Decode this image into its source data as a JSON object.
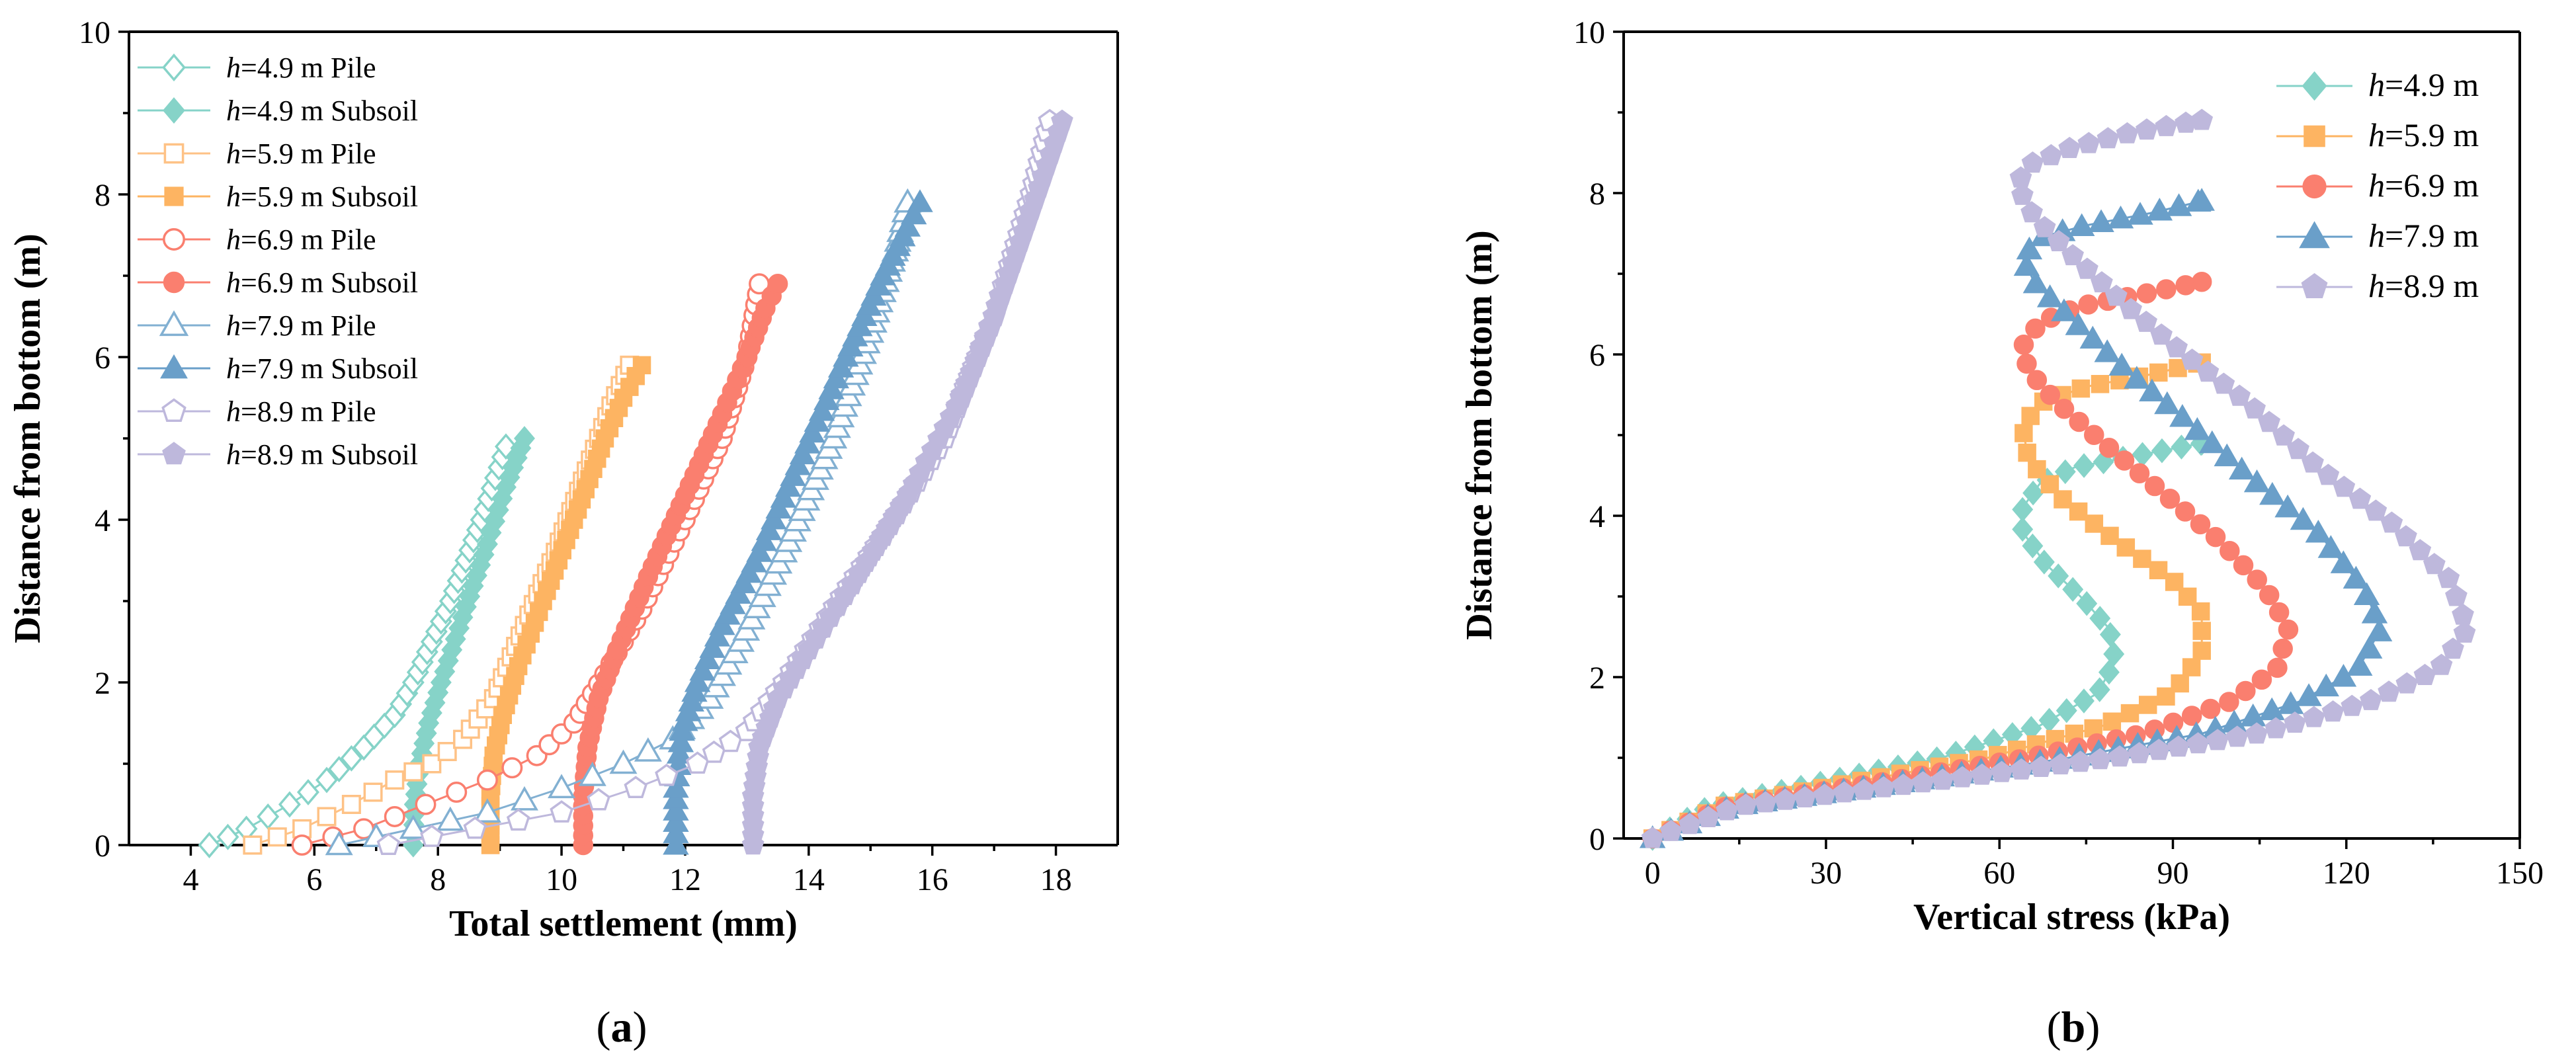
{
  "chart_data": [
    {
      "panel": "a",
      "type": "scatter",
      "panel_label": "(a)",
      "panel_label_letter": "a",
      "panel_label_open": "(",
      "panel_label_close": ")",
      "xlabel": "Total settlement (mm)",
      "ylabel": "Distance from bottom (m)",
      "xlim": [
        3,
        19
      ],
      "ylim": [
        0,
        10
      ],
      "xticks": [
        4,
        6,
        8,
        10,
        12,
        14,
        16,
        18
      ],
      "xtick_labels": [
        "4",
        "6",
        "8",
        "10",
        "12",
        "14",
        "16",
        "18"
      ],
      "yticks": [
        0,
        2,
        4,
        6,
        8,
        10
      ],
      "ytick_labels": [
        "0",
        "2",
        "4",
        "6",
        "8",
        "10"
      ],
      "legend_position": "top-left",
      "series": [
        {
          "name": "h=4.9 m Pile",
          "h_text": "h",
          "rest_text": "=4.9 m Pile",
          "color": "#86d3c8",
          "marker": "diamond",
          "filled": false,
          "height": 4.9,
          "points": [
            [
              4.3,
              0
            ],
            [
              4.9,
              0.2
            ],
            [
              5.6,
              0.5
            ],
            [
              6.2,
              0.8
            ],
            [
              6.8,
              1.2
            ],
            [
              7.3,
              1.6
            ],
            [
              7.6,
              2.0
            ],
            [
              8.2,
              3.0
            ],
            [
              8.7,
              4.0
            ],
            [
              9.1,
              4.9
            ]
          ]
        },
        {
          "name": "h=4.9 m Subsoil",
          "h_text": "h",
          "rest_text": "=4.9 m Subsoil",
          "color": "#86d3c8",
          "marker": "diamond",
          "filled": true,
          "height": 4.9,
          "points": [
            [
              7.6,
              0
            ],
            [
              7.62,
              0.5
            ],
            [
              7.7,
              1.0
            ],
            [
              7.85,
              1.5
            ],
            [
              8.05,
              2.0
            ],
            [
              8.4,
              2.8
            ],
            [
              8.8,
              3.7
            ],
            [
              9.1,
              4.4
            ],
            [
              9.4,
              5.0
            ]
          ]
        },
        {
          "name": "h=5.9 m Pile",
          "h_text": "h",
          "rest_text": "=5.9 m Pile",
          "color": "#fec286",
          "marker": "square",
          "filled": false,
          "height": 5.9,
          "points": [
            [
              5.0,
              0
            ],
            [
              5.8,
              0.2
            ],
            [
              6.6,
              0.5
            ],
            [
              7.3,
              0.8
            ],
            [
              7.9,
              1.0
            ],
            [
              8.4,
              1.3
            ],
            [
              8.9,
              1.8
            ],
            [
              9.4,
              2.7
            ],
            [
              9.9,
              3.6
            ],
            [
              10.4,
              4.6
            ],
            [
              10.8,
              5.4
            ],
            [
              11.1,
              5.9
            ]
          ]
        },
        {
          "name": "h=5.9 m Subsoil",
          "h_text": "h",
          "rest_text": "=5.9 m Subsoil",
          "color": "#fdb462",
          "marker": "square",
          "filled": true,
          "height": 5.9,
          "points": [
            [
              8.85,
              0
            ],
            [
              8.85,
              0.6
            ],
            [
              8.9,
              1.1
            ],
            [
              9.05,
              1.6
            ],
            [
              9.3,
              2.2
            ],
            [
              9.7,
              3.0
            ],
            [
              10.2,
              4.0
            ],
            [
              10.7,
              5.0
            ],
            [
              11.0,
              5.5
            ],
            [
              11.3,
              5.9
            ]
          ]
        },
        {
          "name": "h=6.9 m Pile",
          "h_text": "h",
          "rest_text": "=6.9 m Pile",
          "color": "#fa7f6f",
          "marker": "circle",
          "filled": false,
          "height": 6.9,
          "points": [
            [
              5.8,
              0
            ],
            [
              6.8,
              0.2
            ],
            [
              7.8,
              0.5
            ],
            [
              8.8,
              0.8
            ],
            [
              9.6,
              1.1
            ],
            [
              10.2,
              1.5
            ],
            [
              10.7,
              2.1
            ],
            [
              11.3,
              2.9
            ],
            [
              12.0,
              4.0
            ],
            [
              12.6,
              5.0
            ],
            [
              13.0,
              6.0
            ],
            [
              13.2,
              6.9
            ]
          ]
        },
        {
          "name": "h=6.9 m Subsoil",
          "h_text": "h",
          "rest_text": "=6.9 m Subsoil",
          "color": "#fa7f6f",
          "marker": "circle",
          "filled": true,
          "height": 6.9,
          "points": [
            [
              10.35,
              0
            ],
            [
              10.35,
              0.6
            ],
            [
              10.42,
              1.2
            ],
            [
              10.6,
              1.8
            ],
            [
              10.9,
              2.4
            ],
            [
              11.4,
              3.3
            ],
            [
              12.0,
              4.3
            ],
            [
              12.6,
              5.3
            ],
            [
              13.0,
              6.0
            ],
            [
              13.3,
              6.6
            ],
            [
              13.5,
              6.9
            ]
          ]
        },
        {
          "name": "h=7.9 m Pile",
          "h_text": "h",
          "rest_text": "=7.9 m Pile",
          "color": "#82b0d2",
          "marker": "triangle",
          "filled": false,
          "height": 7.9,
          "points": [
            [
              6.4,
              0
            ],
            [
              7.6,
              0.2
            ],
            [
              8.8,
              0.4
            ],
            [
              10.0,
              0.7
            ],
            [
              11.0,
              1.0
            ],
            [
              11.8,
              1.3
            ],
            [
              12.4,
              1.8
            ],
            [
              12.9,
              2.5
            ],
            [
              13.6,
              3.6
            ],
            [
              14.4,
              5.0
            ],
            [
              15.0,
              6.3
            ],
            [
              15.4,
              7.3
            ],
            [
              15.6,
              7.9
            ]
          ]
        },
        {
          "name": "h=7.9 m Subsoil",
          "h_text": "h",
          "rest_text": "=7.9 m Subsoil",
          "color": "#6a9fc9",
          "marker": "triangle",
          "filled": true,
          "height": 7.9,
          "points": [
            [
              11.85,
              0
            ],
            [
              11.85,
              0.7
            ],
            [
              11.95,
              1.4
            ],
            [
              12.2,
              2.0
            ],
            [
              12.6,
              2.7
            ],
            [
              13.2,
              3.6
            ],
            [
              13.9,
              4.8
            ],
            [
              14.6,
              6.0
            ],
            [
              15.2,
              7.0
            ],
            [
              15.6,
              7.6
            ],
            [
              15.8,
              7.9
            ]
          ]
        },
        {
          "name": "h=8.9 m Pile",
          "h_text": "h",
          "rest_text": "=8.9 m Pile",
          "color": "#beb8dc",
          "marker": "pentagon",
          "filled": false,
          "height": 8.9,
          "points": [
            [
              7.2,
              0
            ],
            [
              8.6,
              0.2
            ],
            [
              10.0,
              0.4
            ],
            [
              11.2,
              0.7
            ],
            [
              12.2,
              1.0
            ],
            [
              13.0,
              1.4
            ],
            [
              13.6,
              2.0
            ],
            [
              14.3,
              2.8
            ],
            [
              15.2,
              3.8
            ],
            [
              16.2,
              5.0
            ],
            [
              17.0,
              6.5
            ],
            [
              17.6,
              8.0
            ],
            [
              17.9,
              8.9
            ]
          ]
        },
        {
          "name": "h=8.9 m Subsoil",
          "h_text": "h",
          "rest_text": "=8.9 m Subsoil",
          "color": "#beb8dc",
          "marker": "pentagon",
          "filled": true,
          "height": 8.9,
          "points": [
            [
              13.1,
              0
            ],
            [
              13.1,
              0.6
            ],
            [
              13.2,
              1.2
            ],
            [
              13.5,
              1.8
            ],
            [
              14.0,
              2.4
            ],
            [
              14.7,
              3.2
            ],
            [
              15.6,
              4.3
            ],
            [
              16.4,
              5.4
            ],
            [
              17.0,
              6.5
            ],
            [
              17.6,
              7.8
            ],
            [
              18.1,
              8.9
            ]
          ]
        }
      ]
    },
    {
      "panel": "b",
      "type": "line",
      "panel_label": "(b)",
      "panel_label_letter": "b",
      "panel_label_open": "(",
      "panel_label_close": ")",
      "xlabel": "Vertical stress (kPa)",
      "ylabel": "Distance from bottom (m)",
      "xlim": [
        -5,
        150
      ],
      "ylim": [
        0,
        10
      ],
      "xticks": [
        0,
        30,
        60,
        90,
        120,
        150
      ],
      "xtick_labels": [
        "0",
        "30",
        "60",
        "90",
        "120",
        "150"
      ],
      "yticks": [
        0,
        2,
        4,
        6,
        8,
        10
      ],
      "ytick_labels": [
        "0",
        "2",
        "4",
        "6",
        "8",
        "10"
      ],
      "legend_position": "top-right",
      "series": [
        {
          "name": "h=4.9 m",
          "h_text": "h",
          "rest_text": "=4.9 m",
          "color": "#86d3c8",
          "marker": "diamond",
          "filled": true,
          "points": [
            [
              0,
              0
            ],
            [
              10,
              0.4
            ],
            [
              30,
              0.7
            ],
            [
              50,
              1.0
            ],
            [
              67,
              1.4
            ],
            [
              77,
              1.8
            ],
            [
              80,
              2.2
            ],
            [
              79,
              2.6
            ],
            [
              74,
              3.0
            ],
            [
              68,
              3.4
            ],
            [
              64,
              3.8
            ],
            [
              64,
              4.1
            ],
            [
              67,
              4.4
            ],
            [
              73,
              4.6
            ],
            [
              84,
              4.75
            ],
            [
              95,
              4.9
            ]
          ]
        },
        {
          "name": "h=5.9 m",
          "h_text": "h",
          "rest_text": "=5.9 m",
          "color": "#fdb462",
          "marker": "square",
          "filled": true,
          "points": [
            [
              0,
              0
            ],
            [
              12,
              0.4
            ],
            [
              35,
              0.7
            ],
            [
              58,
              1.0
            ],
            [
              78,
              1.4
            ],
            [
              90,
              1.8
            ],
            [
              95,
              2.3
            ],
            [
              95,
              2.8
            ],
            [
              90,
              3.2
            ],
            [
              80,
              3.7
            ],
            [
              71,
              4.2
            ],
            [
              65,
              4.7
            ],
            [
              64,
              5.1
            ],
            [
              67,
              5.4
            ],
            [
              75,
              5.6
            ],
            [
              86,
              5.75
            ],
            [
              95,
              5.9
            ]
          ]
        },
        {
          "name": "h=6.9 m",
          "h_text": "h",
          "rest_text": "=6.9 m",
          "color": "#fa7f6f",
          "marker": "circle",
          "filled": true,
          "points": [
            [
              0,
              0
            ],
            [
              13,
              0.4
            ],
            [
              40,
              0.7
            ],
            [
              65,
              1.0
            ],
            [
              85,
              1.3
            ],
            [
              100,
              1.7
            ],
            [
              108,
              2.1
            ],
            [
              110,
              2.6
            ],
            [
              106,
              3.1
            ],
            [
              98,
              3.7
            ],
            [
              88,
              4.3
            ],
            [
              78,
              4.9
            ],
            [
              70,
              5.4
            ],
            [
              65,
              5.8
            ],
            [
              64,
              6.1
            ],
            [
              67,
              6.4
            ],
            [
              74,
              6.6
            ],
            [
              85,
              6.75
            ],
            [
              95,
              6.9
            ]
          ]
        },
        {
          "name": "h=7.9 m",
          "h_text": "h",
          "rest_text": "=7.9 m",
          "color": "#6a9fc9",
          "marker": "triangle",
          "filled": true,
          "points": [
            [
              0,
              0
            ],
            [
              14,
              0.4
            ],
            [
              44,
              0.7
            ],
            [
              72,
              1.0
            ],
            [
              95,
              1.3
            ],
            [
              112,
              1.7
            ],
            [
              122,
              2.1
            ],
            [
              126,
              2.6
            ],
            [
              123,
              3.1
            ],
            [
              115,
              3.8
            ],
            [
              103,
              4.5
            ],
            [
              92,
              5.2
            ],
            [
              82,
              5.8
            ],
            [
              73,
              6.4
            ],
            [
              66,
              6.9
            ],
            [
              64,
              7.2
            ],
            [
              67,
              7.45
            ],
            [
              75,
              7.6
            ],
            [
              86,
              7.75
            ],
            [
              95,
              7.9
            ]
          ]
        },
        {
          "name": "h=8.9 m",
          "h_text": "h",
          "rest_text": "=8.9 m",
          "color": "#beb8dc",
          "marker": "pentagon",
          "filled": true,
          "points": [
            [
              0,
              0
            ],
            [
              15,
              0.4
            ],
            [
              48,
              0.7
            ],
            [
              80,
              1.0
            ],
            [
              105,
              1.3
            ],
            [
              124,
              1.7
            ],
            [
              136,
              2.1
            ],
            [
              141,
              2.6
            ],
            [
              138,
              3.2
            ],
            [
              128,
              3.9
            ],
            [
              115,
              4.6
            ],
            [
              103,
              5.4
            ],
            [
              92,
              6.0
            ],
            [
              82,
              6.6
            ],
            [
              73,
              7.2
            ],
            [
              66,
              7.7
            ],
            [
              63,
              8.1
            ],
            [
              65,
              8.35
            ],
            [
              72,
              8.55
            ],
            [
              83,
              8.75
            ],
            [
              95,
              8.9
            ]
          ]
        }
      ]
    }
  ]
}
